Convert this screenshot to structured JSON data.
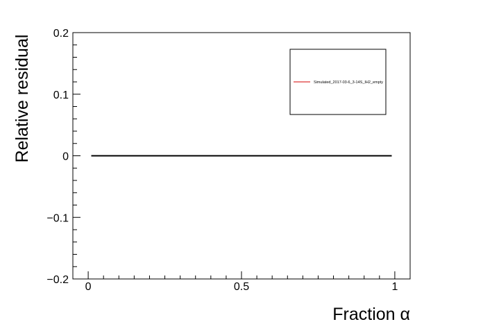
{
  "chart_data": {
    "type": "line",
    "title": "",
    "xlabel": "Fraction α",
    "ylabel": "Relative residual",
    "xlim": [
      -0.05,
      1.05
    ],
    "ylim": [
      -0.2,
      0.2
    ],
    "x_ticks": [
      0,
      0.5,
      1
    ],
    "x_tick_labels": [
      "0",
      "0.5",
      "1"
    ],
    "y_ticks": [
      -0.2,
      -0.1,
      0,
      0.1,
      0.2
    ],
    "y_tick_labels": [
      "−0.2",
      "−0.1",
      "0",
      "0.1",
      "0.2"
    ],
    "grid": false,
    "legend_position": "top-right",
    "series": [
      {
        "name": "Simulated_2017-03-6_3-14S_IH2_empty",
        "color": "#d40000",
        "x": [
          0.01,
          0.99
        ],
        "y": [
          0,
          0
        ]
      }
    ],
    "reference_line": {
      "y": 0,
      "x": [
        0.01,
        0.99
      ],
      "color": "#000000"
    }
  }
}
